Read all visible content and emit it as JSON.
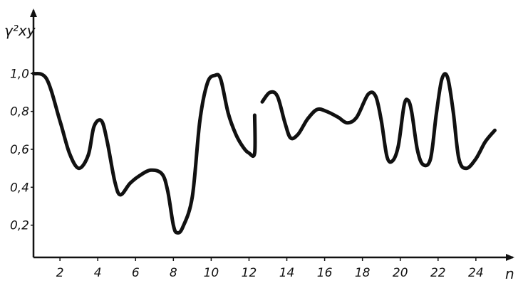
{
  "chart_data": {
    "type": "line",
    "title": "",
    "ylabel": "γ²xy",
    "xlabel": "n",
    "xlim": [
      0.6,
      25.4
    ],
    "ylim": [
      0.03,
      1.2
    ],
    "x_ticks": [
      2,
      4,
      6,
      8,
      10,
      12,
      14,
      16,
      18,
      20,
      22,
      24
    ],
    "x_tick_labels": [
      "2",
      "4",
      "6",
      "8",
      "10",
      "12",
      "14",
      "16",
      "18",
      "20",
      "22",
      "24"
    ],
    "y_ticks": [
      0.2,
      0.4,
      0.6,
      0.8,
      1.0
    ],
    "y_tick_labels": [
      "0,2",
      "0,4",
      "0,6",
      "0,8",
      "1,0"
    ],
    "grid": false,
    "series": [
      {
        "segments": [
          [
            [
              0.6,
              1.0
            ],
            [
              1.3,
              0.97
            ],
            [
              2.0,
              0.75
            ],
            [
              2.5,
              0.58
            ],
            [
              3.0,
              0.5
            ],
            [
              3.5,
              0.57
            ],
            [
              3.8,
              0.72
            ],
            [
              4.2,
              0.75
            ],
            [
              4.5,
              0.64
            ],
            [
              4.9,
              0.43
            ],
            [
              5.2,
              0.36
            ],
            [
              5.7,
              0.42
            ],
            [
              6.2,
              0.46
            ],
            [
              6.8,
              0.49
            ],
            [
              7.4,
              0.47
            ],
            [
              7.7,
              0.38
            ],
            [
              8.0,
              0.2
            ],
            [
              8.2,
              0.16
            ],
            [
              8.5,
              0.19
            ],
            [
              9.0,
              0.35
            ],
            [
              9.4,
              0.75
            ],
            [
              9.8,
              0.95
            ],
            [
              10.2,
              0.99
            ],
            [
              10.5,
              0.97
            ],
            [
              10.9,
              0.79
            ],
            [
              11.3,
              0.68
            ],
            [
              11.7,
              0.61
            ],
            [
              12.0,
              0.58
            ],
            [
              12.3,
              0.58
            ],
            [
              12.3,
              0.78
            ]
          ],
          [
            [
              12.7,
              0.85
            ],
            [
              13.1,
              0.9
            ],
            [
              13.5,
              0.88
            ],
            [
              13.9,
              0.74
            ],
            [
              14.2,
              0.66
            ],
            [
              14.6,
              0.68
            ],
            [
              15.1,
              0.76
            ],
            [
              15.6,
              0.81
            ],
            [
              16.1,
              0.8
            ],
            [
              16.7,
              0.77
            ],
            [
              17.2,
              0.74
            ],
            [
              17.7,
              0.77
            ],
            [
              18.3,
              0.89
            ],
            [
              18.7,
              0.88
            ],
            [
              19.0,
              0.75
            ],
            [
              19.3,
              0.56
            ],
            [
              19.6,
              0.54
            ],
            [
              19.9,
              0.62
            ],
            [
              20.2,
              0.83
            ],
            [
              20.4,
              0.86
            ],
            [
              20.6,
              0.8
            ],
            [
              20.9,
              0.6
            ],
            [
              21.2,
              0.52
            ],
            [
              21.6,
              0.55
            ],
            [
              21.9,
              0.78
            ],
            [
              22.2,
              0.97
            ],
            [
              22.5,
              0.98
            ],
            [
              22.8,
              0.8
            ],
            [
              23.1,
              0.55
            ],
            [
              23.5,
              0.5
            ],
            [
              24.0,
              0.55
            ],
            [
              24.5,
              0.64
            ],
            [
              25.0,
              0.7
            ]
          ]
        ]
      }
    ]
  },
  "colors": {
    "ink": "#111111",
    "background": "#ffffff"
  }
}
